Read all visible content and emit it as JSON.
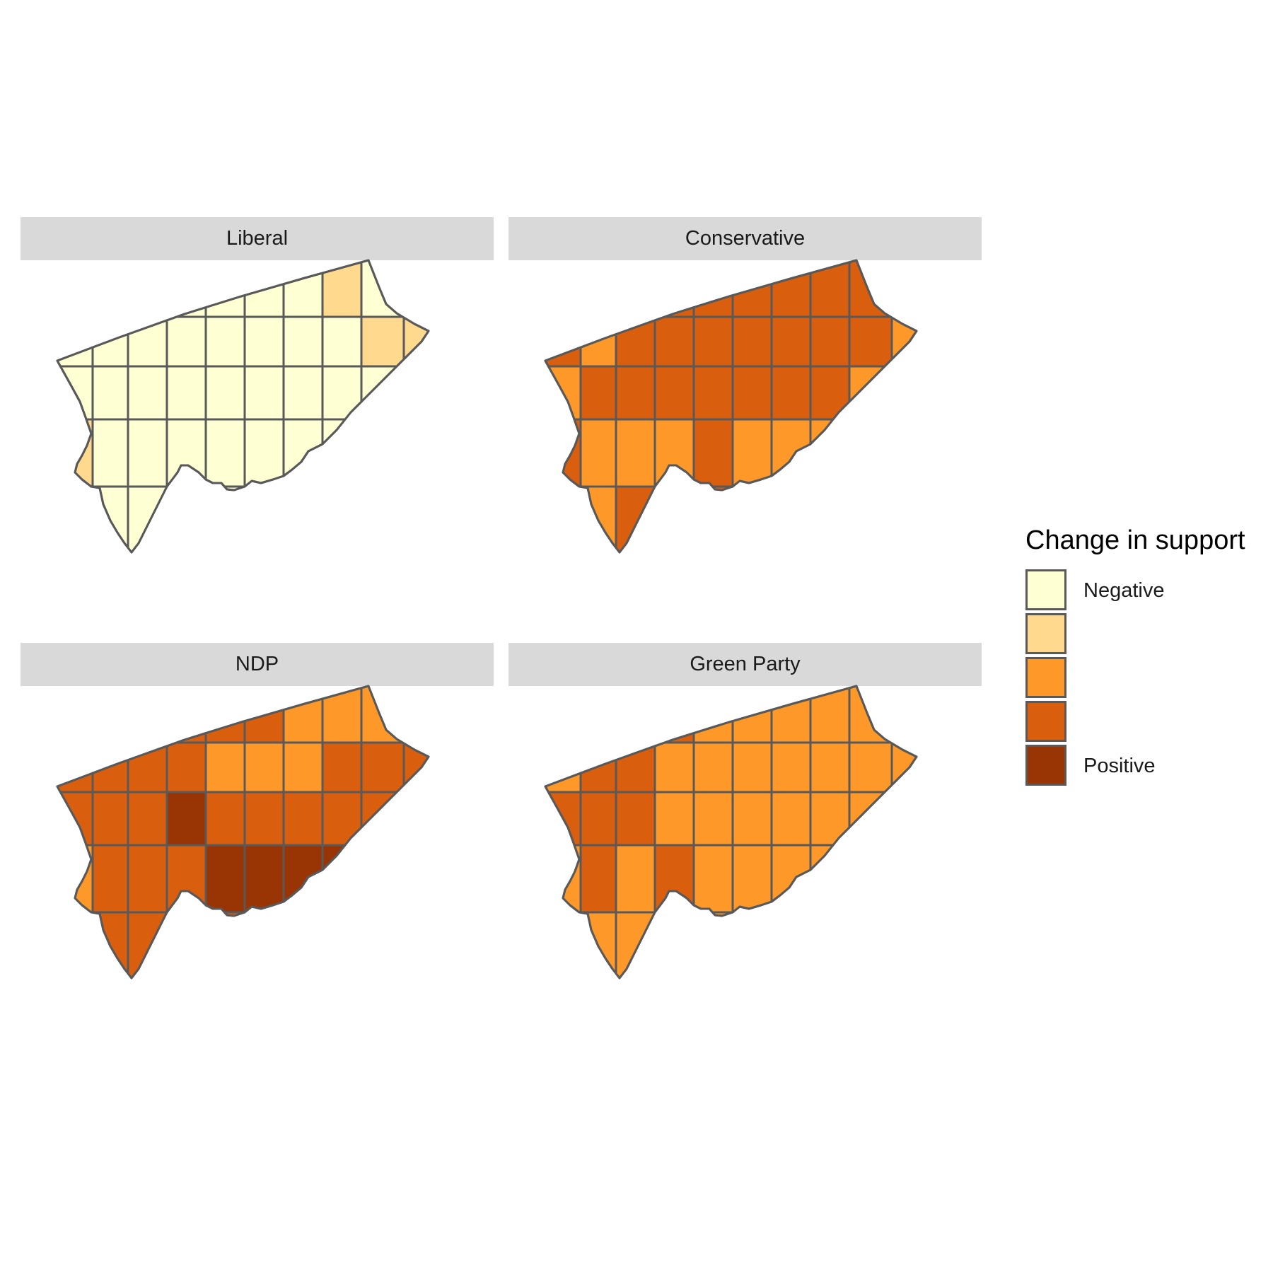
{
  "legend": {
    "title": "Change in support",
    "keys": [
      {
        "label": "Negative",
        "color": "#ffffd4"
      },
      {
        "label": "",
        "color": "#fed98e"
      },
      {
        "label": "",
        "color": "#fe9929"
      },
      {
        "label": "",
        "color": "#d95f0e"
      },
      {
        "label": "Positive",
        "color": "#993404"
      }
    ]
  },
  "colors": {
    "strip_background": "#d9d9d9",
    "boundary": "#595959",
    "page_background": "#ffffff"
  },
  "panels": [
    {
      "title": "Liberal",
      "default_level": 0,
      "districts": {
        "tile-4": 1,
        "tile-14": 1,
        "tile-15": 1,
        "tile-25": 1
      }
    },
    {
      "title": "Conservative",
      "default_level": 3,
      "districts": {
        "tile-7": 2,
        "tile-15": 2,
        "tile-16": 2,
        "tile-24": 2,
        "tile-26": 2,
        "tile-27": 2,
        "tile-28": 2,
        "tile-30": 2,
        "tile-31": 2,
        "tile-32": 2,
        "tile-33": 2
      }
    },
    {
      "title": "NDP",
      "default_level": 3,
      "districts": {
        "tile-3": 2,
        "tile-4": 2,
        "tile-5": 2,
        "tile-10": 2,
        "tile-11": 2,
        "tile-12": 2,
        "tile-25": 2,
        "tile-19": 4,
        "tile-29": 4,
        "tile-30": 4,
        "tile-31": 4,
        "tile-32": 4
      }
    },
    {
      "title": "Green Party",
      "default_level": 2,
      "districts": {
        "tile-0": 3,
        "tile-7": 3,
        "tile-8": 3,
        "tile-16": 3,
        "tile-17": 3,
        "tile-18": 3,
        "tile-26": 3,
        "tile-28": 3
      }
    }
  ]
}
